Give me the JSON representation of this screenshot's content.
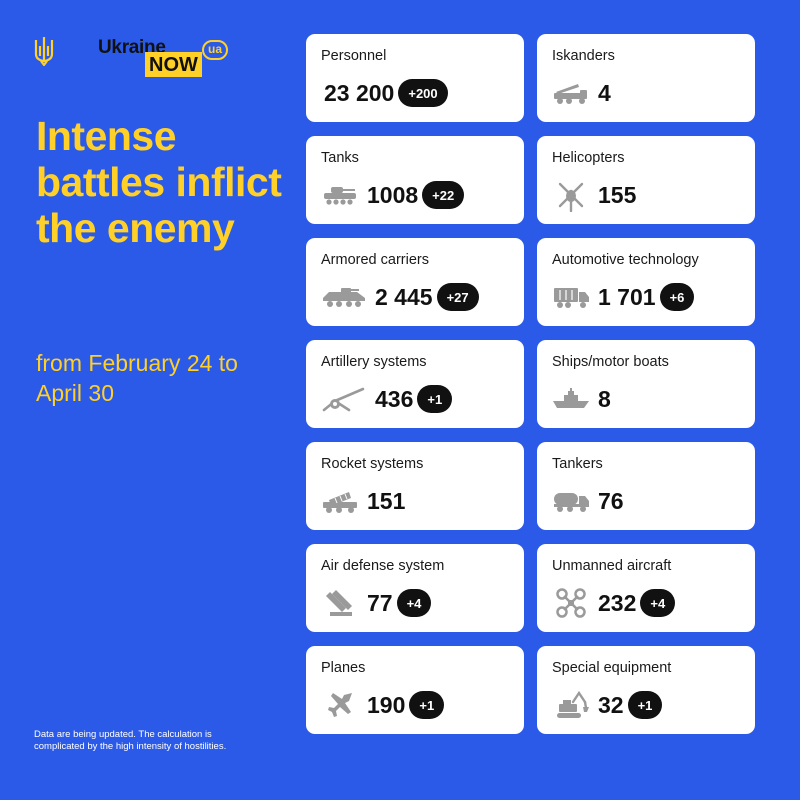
{
  "header": {
    "logo_line1": "Ukraine",
    "logo_line2": "NOW",
    "logo_badge": "ua"
  },
  "headline": "Intense battles inflict the enemy",
  "period": "from February 24 to April 30",
  "footnote": "Data are being updated. The calculation is complicated by the high intensity of hostilities.",
  "cards": [
    {
      "label": "Personnel",
      "value": "23 200",
      "delta": "+200",
      "icon": "none"
    },
    {
      "label": "Iskanders",
      "value": "4",
      "delta": "",
      "icon": "missile-launcher-icon"
    },
    {
      "label": "Tanks",
      "value": "1008",
      "delta": "+22",
      "icon": "tank-icon"
    },
    {
      "label": "Helicopters",
      "value": "155",
      "delta": "",
      "icon": "helicopter-icon"
    },
    {
      "label": "Armored carriers",
      "value": "2 445",
      "delta": "+27",
      "icon": "armored-carrier-icon"
    },
    {
      "label": "Automotive technology",
      "value": "1 701",
      "delta": "+6",
      "icon": "truck-icon"
    },
    {
      "label": "Artillery systems",
      "value": "436",
      "delta": "+1",
      "icon": "artillery-icon"
    },
    {
      "label": "Ships/motor boats",
      "value": "8",
      "delta": "",
      "icon": "ship-icon"
    },
    {
      "label": "Rocket systems",
      "value": "151",
      "delta": "",
      "icon": "rocket-launcher-icon"
    },
    {
      "label": "Tankers",
      "value": "76",
      "delta": "",
      "icon": "fuel-tanker-icon"
    },
    {
      "label": "Air defense system",
      "value": "77",
      "delta": "+4",
      "icon": "air-defense-icon"
    },
    {
      "label": "Unmanned aircraft",
      "value": "232",
      "delta": "+4",
      "icon": "drone-icon"
    },
    {
      "label": "Planes",
      "value": "190",
      "delta": "+1",
      "icon": "plane-icon"
    },
    {
      "label": "Special equipment",
      "value": "32",
      "delta": "+1",
      "icon": "excavator-icon"
    }
  ],
  "colors": {
    "background": "#2b5ae8",
    "accent_yellow": "#ffd028",
    "card": "#ffffff",
    "badge": "#111111",
    "icon_gray": "#9a9a9a"
  }
}
